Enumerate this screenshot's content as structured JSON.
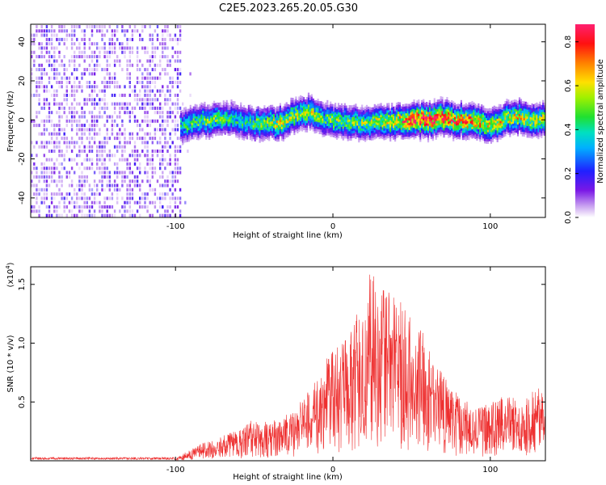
{
  "title": "C2E5.2023.265.20.05.G30",
  "chart_data": [
    {
      "type": "heatmap",
      "xlabel": "Height of straight line (km)",
      "ylabel": "Frequency (Hz)",
      "xlim": [
        -192,
        135
      ],
      "ylim": [
        -50,
        49
      ],
      "xticks": [
        -100,
        0,
        100
      ],
      "yticks": [
        -40,
        -20,
        0,
        20,
        40
      ],
      "colorbar": {
        "label": "Normalized spectral amplitude",
        "range": [
          0,
          0.88
        ],
        "ticks": [
          0.0,
          0.2,
          0.4,
          0.6,
          0.8
        ]
      },
      "noise_region": {
        "x_range": [
          -192,
          -97
        ],
        "amplitude": 0.1
      },
      "signal_ridge": {
        "x": [
          -97,
          -90,
          -80,
          -70,
          -60,
          -50,
          -40,
          -35,
          -30,
          -25,
          -20,
          -15,
          -10,
          -5,
          0,
          10,
          20,
          30,
          40,
          50,
          60,
          70,
          80,
          90,
          100,
          105,
          110,
          115,
          120,
          130,
          135
        ],
        "center_hz": [
          -4,
          -2,
          0,
          1,
          0,
          -2,
          -1,
          -2,
          0,
          2,
          3,
          4,
          1,
          0,
          0,
          -1,
          -2,
          -1,
          -1,
          0,
          0,
          1,
          0,
          -1,
          -3,
          -1,
          1,
          2,
          1,
          0,
          1
        ],
        "amplitude": [
          0.4,
          0.45,
          0.5,
          0.45,
          0.4,
          0.45,
          0.5,
          0.6,
          0.55,
          0.55,
          0.5,
          0.55,
          0.5,
          0.45,
          0.5,
          0.5,
          0.5,
          0.55,
          0.6,
          0.8,
          0.85,
          0.8,
          0.7,
          0.7,
          0.6,
          0.6,
          0.55,
          0.6,
          0.6,
          0.55,
          0.5
        ]
      }
    },
    {
      "type": "line",
      "xlabel": "Height of straight line (km)",
      "ylabel": "SNR (10 * v/v)",
      "y_multiplier": "(x10",
      "y_multiplier_exp": "4",
      "y_multiplier_close": ")",
      "xlim": [
        -192,
        135
      ],
      "ylim": [
        0,
        16500
      ],
      "xticks": [
        -100,
        0,
        100
      ],
      "yticks": [
        5000,
        10000,
        15000
      ],
      "ytick_labels": [
        "0.5",
        "1.0",
        "1.5"
      ],
      "series": [
        {
          "color": "#ee3030",
          "envelope_x": [
            -192,
            -150,
            -100,
            -90,
            -80,
            -60,
            -50,
            -40,
            -30,
            -20,
            -10,
            0,
            10,
            20,
            25,
            30,
            40,
            50,
            55,
            60,
            70,
            80,
            90,
            100,
            110,
            120,
            130,
            135
          ],
          "envelope_y": [
            200,
            200,
            200,
            900,
            1500,
            2300,
            3200,
            3000,
            3500,
            4500,
            6500,
            8500,
            10000,
            12000,
            15500,
            13000,
            12500,
            11000,
            10500,
            8500,
            6500,
            5000,
            4000,
            4500,
            5000,
            4500,
            5800,
            5500
          ]
        }
      ]
    }
  ]
}
